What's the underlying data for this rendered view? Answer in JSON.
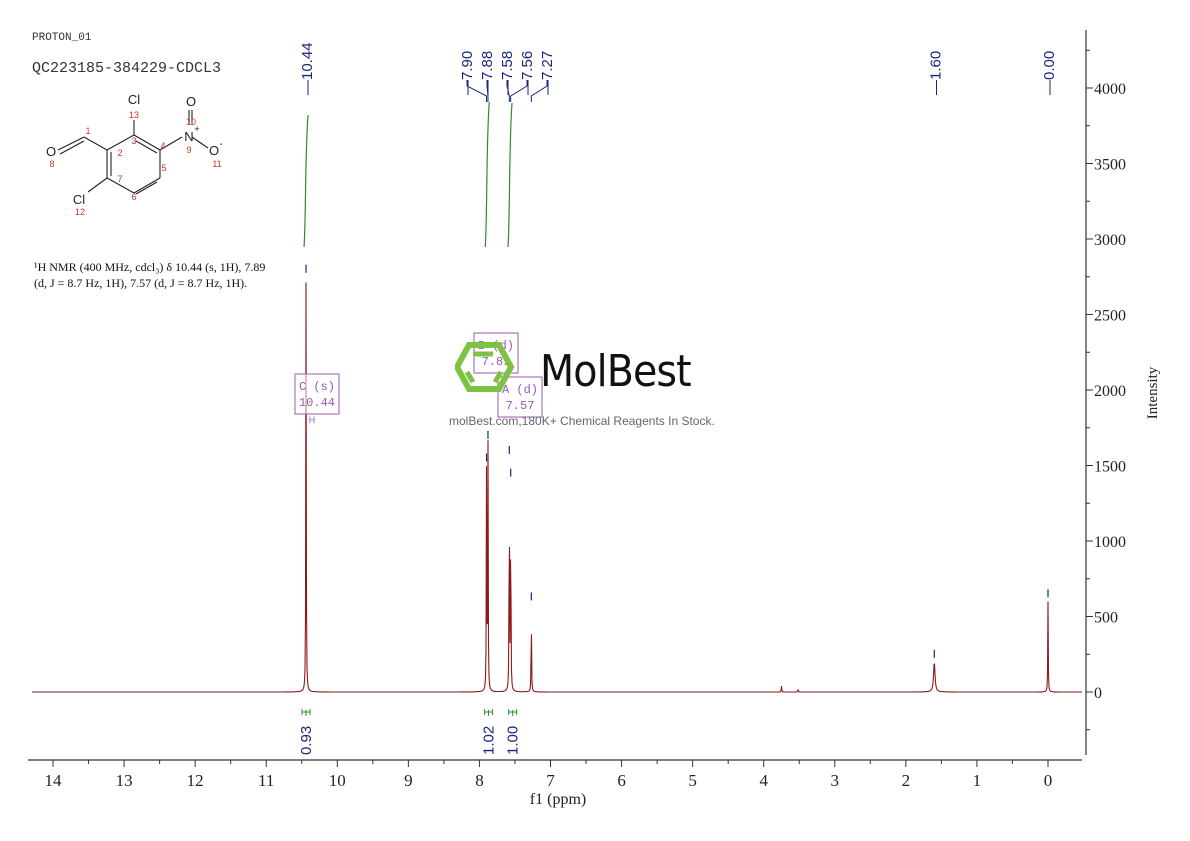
{
  "header": {
    "experiment": "PROTON_01",
    "sample_id": "QC223185-384229-CDCL3"
  },
  "structure": {
    "atoms": [
      {
        "symbol": "Cl",
        "label": "13"
      },
      {
        "symbol": "O",
        "label": "10"
      },
      {
        "symbol": "N+",
        "label": "9"
      },
      {
        "symbol": "O-",
        "label": "11"
      },
      {
        "symbol": "O",
        "label": "8"
      },
      {
        "symbol": "Cl",
        "label": "12"
      }
    ],
    "carbon_labels": [
      "1",
      "2",
      "3",
      "4",
      "5",
      "6",
      "7"
    ]
  },
  "nmr_description": {
    "line1": "¹H NMR (400 MHz, cdcl₃) δ 10.44 (s, 1H), 7.89",
    "line2": "(d, J = 8.7 Hz, 1H), 7.57 (d, J = 8.7 Hz, 1H)."
  },
  "watermark": {
    "brand": "MolBest",
    "tagline": "molBest.com,180K+ Chemical Reagents In Stock.",
    "logo_color": "#7dc242"
  },
  "multiplet_boxes": [
    {
      "label": "C (s)",
      "value": "10.44"
    },
    {
      "label": "B (d)",
      "value": "7.89"
    },
    {
      "label": "A (d)",
      "value": "7.57"
    }
  ],
  "colors": {
    "spectrum": "#8b1a1a",
    "peak_labels": "#1a237e",
    "integral": "#2e8b2e",
    "multiplet_box": "#9b59b6",
    "axis": "#333333"
  },
  "chart_data": {
    "type": "line",
    "title": "",
    "xlabel": "f1 (ppm)",
    "ylabel": "Intensity",
    "xlim": [
      14.5,
      -0.5
    ],
    "ylim": [
      -500,
      4400
    ],
    "x_reversed": true,
    "x_ticks": [
      14,
      13,
      12,
      11,
      10,
      9,
      8,
      7,
      6,
      5,
      4,
      3,
      2,
      1,
      0
    ],
    "y_ticks": [
      0,
      500,
      1000,
      1500,
      2000,
      2500,
      3000,
      3500,
      4000
    ],
    "grid": false,
    "peaks": [
      {
        "ppm": 10.44,
        "intensity": 2750
      },
      {
        "ppm": 7.9,
        "intensity": 1500
      },
      {
        "ppm": 7.88,
        "intensity": 1650
      },
      {
        "ppm": 7.58,
        "intensity": 1550
      },
      {
        "ppm": 7.56,
        "intensity": 1400
      },
      {
        "ppm": 7.27,
        "intensity": 580
      },
      {
        "ppm": 3.75,
        "intensity": 40
      },
      {
        "ppm": 3.52,
        "intensity": 20
      },
      {
        "ppm": 1.6,
        "intensity": 200
      },
      {
        "ppm": 0.0,
        "intensity": 600
      }
    ],
    "peak_labels": [
      "10.44",
      "7.90",
      "7.88",
      "7.58",
      "7.56",
      "7.27",
      "1.60",
      "0.00"
    ],
    "integrals": [
      {
        "ppm": 10.44,
        "value": "0.93"
      },
      {
        "ppm": 7.89,
        "value": "1.02"
      },
      {
        "ppm": 7.57,
        "value": "1.00"
      }
    ]
  }
}
